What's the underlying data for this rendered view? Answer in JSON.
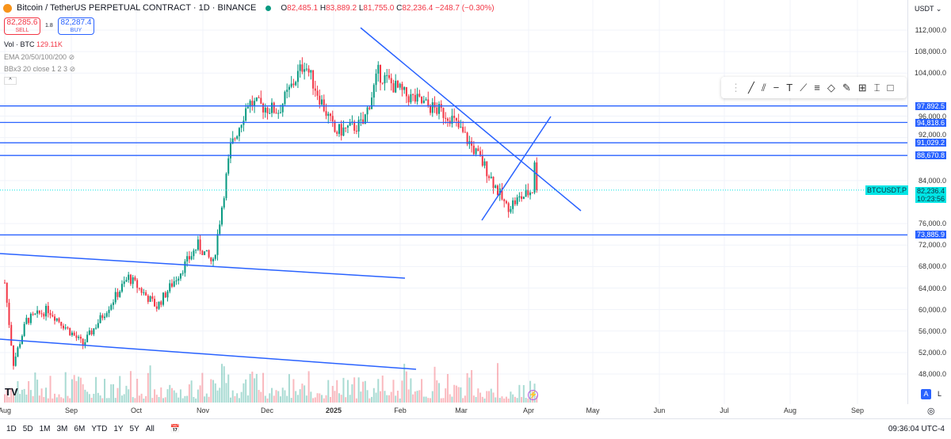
{
  "header": {
    "title": "Bitcoin / TetherUS PERPETUAL CONTRACT · 1D · BINANCE",
    "o_label": "O",
    "o": "82,485.1",
    "h_label": "H",
    "h": "83,889.2",
    "l_label": "L",
    "l": "81,755.0",
    "c_label": "C",
    "c": "82,236.4",
    "change": "−248.7 (−0.30%)"
  },
  "trade": {
    "sell_price": "82,285.6",
    "sell_label": "SELL",
    "spread": "1.8",
    "buy_price": "82,287.4",
    "buy_label": "BUY"
  },
  "indicators": {
    "vol_label": "Vol · BTC",
    "vol_value": "129.11K",
    "ema": "EMA 20/50/100/200",
    "bb": "BBx3 20 close 1 2 3"
  },
  "currency": "USDT",
  "y_ticks": [
    112000,
    108000,
    104000,
    96000,
    92000,
    84000,
    76000,
    72000,
    68000,
    64000,
    60000,
    56000,
    52000,
    48000
  ],
  "y_tick_labels": [
    "112,000.0",
    "108,000.0",
    "104,000.0",
    "96,000.0",
    "92,000.0",
    "84,000.0",
    "76,000.0",
    "72,000.0",
    "68,000.0",
    "64,000.0",
    "60,000.0",
    "56,000.0",
    "52,000.0",
    "48,000.0"
  ],
  "levels": [
    {
      "value": 97892.5,
      "label": "97,892.5"
    },
    {
      "value": 94818.6,
      "label": "94,818.6"
    },
    {
      "value": 91029.2,
      "label": "91,029.2"
    },
    {
      "value": 88670.8,
      "label": "88,670.8"
    },
    {
      "value": 73885.9,
      "label": "73,885.9"
    }
  ],
  "last": {
    "symbol": "BTCUSDT.P",
    "price": 82236.4,
    "price_label": "82,236.4",
    "countdown": "10:23:56"
  },
  "price_path": [
    [
      0,
      65000
    ],
    [
      4,
      50000
    ],
    [
      10,
      58000
    ],
    [
      20,
      60000
    ],
    [
      36,
      53500
    ],
    [
      57,
      66000
    ],
    [
      70,
      60500
    ],
    [
      89,
      72000
    ],
    [
      96,
      68500
    ],
    [
      104,
      90000
    ],
    [
      112,
      98500
    ],
    [
      126,
      97000
    ],
    [
      138,
      106000
    ],
    [
      152,
      93000
    ],
    [
      165,
      94500
    ],
    [
      172,
      104000
    ],
    [
      184,
      100000
    ],
    [
      205,
      96000
    ],
    [
      214,
      91000
    ],
    [
      222,
      86000
    ],
    [
      231,
      79000
    ],
    [
      245,
      87000
    ],
    [
      250,
      86000
    ],
    [
      244,
      88000
    ],
    [
      243,
      82236
    ]
  ],
  "x_labels": [
    "Aug",
    "Sep",
    "Oct",
    "Nov",
    "Dec",
    "2025",
    "Feb",
    "Mar",
    "Apr",
    "May",
    "Jun",
    "Jul",
    "Aug",
    "Sep"
  ],
  "ranges": [
    "1D",
    "5D",
    "1M",
    "3M",
    "6M",
    "YTD",
    "1Y",
    "5Y",
    "All"
  ],
  "clock": "09:36:04 UTC-4",
  "scale_buttons": {
    "auto": "A",
    "log": "L"
  },
  "colors": {
    "up": "#089981",
    "down": "#f23645",
    "line": "#2962ff",
    "last": "#00e5e5"
  }
}
